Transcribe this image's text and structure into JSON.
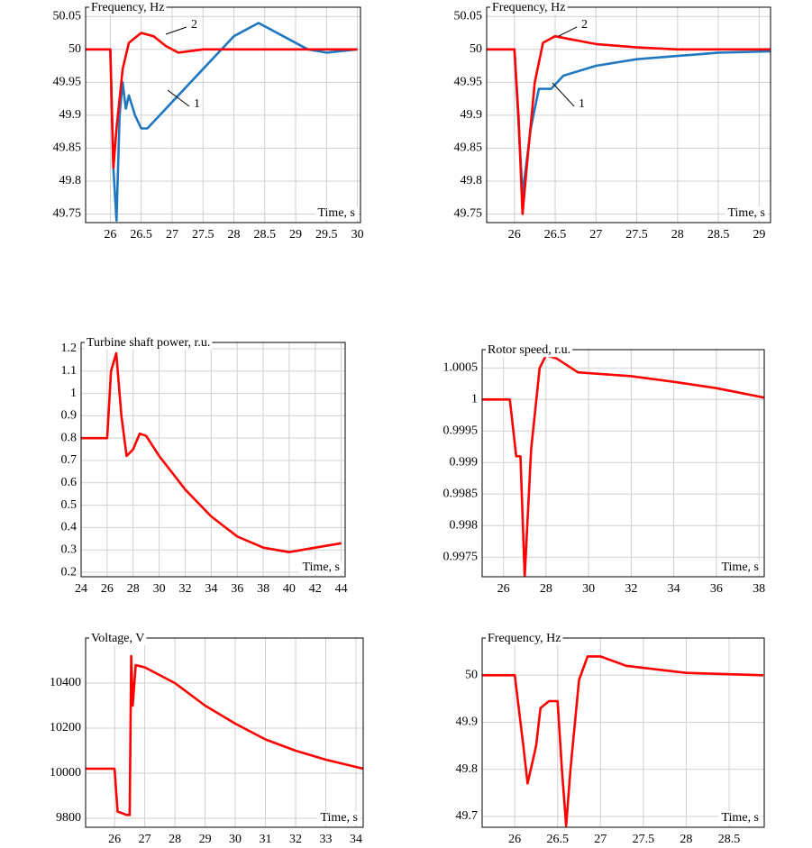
{
  "chart_data": [
    {
      "type": "line",
      "title": "Frequency, Hz",
      "xlabel": "Time, s",
      "grid": true,
      "xlim": [
        25.6,
        30.05
      ],
      "ylim": [
        49.737,
        50.064
      ],
      "xticks": [
        26,
        26.5,
        27,
        27.5,
        28,
        28.5,
        29,
        29.5,
        30
      ],
      "yticks": [
        49.75,
        49.8,
        49.85,
        49.9,
        49.95,
        50,
        50.05
      ],
      "series": [
        {
          "name": "1",
          "color": "#1f78c1",
          "x": [
            25.6,
            26.0,
            26.05,
            26.1,
            26.15,
            26.2,
            26.25,
            26.3,
            26.4,
            26.5,
            26.6,
            27.0,
            27.5,
            28.0,
            28.4,
            28.8,
            29.2,
            29.5,
            30.0
          ],
          "values": [
            50,
            50,
            49.82,
            49.74,
            49.9,
            49.95,
            49.91,
            49.93,
            49.9,
            49.88,
            49.88,
            49.92,
            49.97,
            50.02,
            50.04,
            50.02,
            50.0,
            49.995,
            50.0
          ]
        },
        {
          "name": "2",
          "color": "#ff0000",
          "x": [
            25.6,
            26.0,
            26.05,
            26.1,
            26.2,
            26.3,
            26.5,
            26.7,
            26.9,
            27.1,
            27.5,
            28.0,
            29.0,
            30.0
          ],
          "values": [
            50,
            50,
            49.82,
            49.88,
            49.97,
            50.01,
            50.025,
            50.02,
            50.005,
            49.995,
            50.0,
            50.0,
            50.0,
            50.0
          ]
        }
      ]
    },
    {
      "type": "line",
      "title": "Frequency, Hz",
      "xlabel": "Time, s",
      "grid": true,
      "xlim": [
        25.66,
        29.14
      ],
      "ylim": [
        49.737,
        50.064
      ],
      "xticks": [
        26,
        26.5,
        27,
        27.5,
        28,
        28.5,
        29
      ],
      "yticks": [
        49.75,
        49.8,
        49.85,
        49.9,
        49.95,
        50,
        50.05
      ],
      "series": [
        {
          "name": "1",
          "color": "#1f78c1",
          "x": [
            25.66,
            26.0,
            26.1,
            26.2,
            26.3,
            26.45,
            26.6,
            27.0,
            27.5,
            28.0,
            28.5,
            29.14
          ],
          "values": [
            50,
            50,
            49.78,
            49.88,
            49.94,
            49.94,
            49.96,
            49.975,
            49.985,
            49.99,
            49.995,
            49.997
          ]
        },
        {
          "name": "2",
          "color": "#ff0000",
          "x": [
            25.66,
            26.0,
            26.05,
            26.1,
            26.15,
            26.25,
            26.35,
            26.5,
            26.7,
            27.0,
            27.5,
            28.0,
            29.14
          ],
          "values": [
            50,
            50,
            49.9,
            49.75,
            49.82,
            49.95,
            50.01,
            50.02,
            50.015,
            50.008,
            50.003,
            50.0,
            50.0
          ]
        }
      ]
    },
    {
      "type": "line",
      "title": "Turbine shaft power, r.u.",
      "xlabel": "Time, s",
      "grid": true,
      "xlim": [
        24,
        44.3
      ],
      "ylim": [
        0.18,
        1.228
      ],
      "xticks": [
        24,
        26,
        28,
        30,
        32,
        34,
        36,
        38,
        40,
        42,
        44
      ],
      "yticks": [
        0.2,
        0.3,
        0.4,
        0.5,
        0.6,
        0.7,
        0.8,
        0.9,
        1,
        1.1,
        1.2
      ],
      "series": [
        {
          "color": "#ff0000",
          "x": [
            24,
            26,
            26.3,
            26.7,
            27.1,
            27.5,
            28,
            28.5,
            29,
            30,
            32,
            34,
            36,
            38,
            40,
            42,
            44
          ],
          "values": [
            0.8,
            0.8,
            1.1,
            1.18,
            0.9,
            0.72,
            0.75,
            0.82,
            0.81,
            0.72,
            0.57,
            0.45,
            0.36,
            0.31,
            0.29,
            0.31,
            0.33
          ]
        }
      ]
    },
    {
      "type": "line",
      "title": "Rotor speed, r.u.",
      "xlabel": "Time, s",
      "grid": true,
      "xlim": [
        25.0,
        38.25
      ],
      "ylim": [
        0.99719,
        1.00079
      ],
      "xticks": [
        26,
        28,
        30,
        32,
        34,
        36,
        38
      ],
      "yticks": [
        0.9975,
        0.998,
        0.9985,
        0.999,
        0.9995,
        1,
        1.0005
      ],
      "series": [
        {
          "color": "#ff0000",
          "x": [
            25.0,
            26.3,
            26.6,
            26.8,
            27.0,
            27.3,
            27.7,
            28.0,
            28.5,
            29.5,
            32,
            34,
            36,
            38.25
          ],
          "values": [
            1.0,
            1.0,
            0.9991,
            0.9991,
            0.99719,
            0.9992,
            1.0005,
            1.0007,
            1.00065,
            1.00043,
            1.00037,
            1.00028,
            1.00018,
            1.00003
          ]
        }
      ]
    },
    {
      "type": "line",
      "title": "Voltage, V",
      "xlabel": "Time, s",
      "grid": true,
      "xlim": [
        25.04,
        34.24
      ],
      "ylim": [
        9760,
        10600
      ],
      "xticks": [
        26,
        27,
        28,
        29,
        30,
        31,
        32,
        33,
        34
      ],
      "yticks": [
        9800,
        10000,
        10200,
        10400
      ],
      "series": [
        {
          "color": "#ff0000",
          "x": [
            25.04,
            26.0,
            26.1,
            26.4,
            26.5,
            26.55,
            26.6,
            26.7,
            27,
            28,
            29,
            30,
            31,
            32,
            33,
            34.24
          ],
          "values": [
            10020,
            10020,
            9830,
            9815,
            9815,
            10520,
            10300,
            10480,
            10470,
            10400,
            10300,
            10220,
            10150,
            10100,
            10060,
            10020
          ]
        }
      ]
    },
    {
      "type": "line",
      "title": "Frequency, Hz",
      "xlabel": "Time, s",
      "grid": true,
      "xlim": [
        25.62,
        28.91
      ],
      "ylim": [
        49.677,
        50.079
      ],
      "xticks": [
        26,
        26.5,
        27,
        27.5,
        28,
        28.5
      ],
      "yticks": [
        49.7,
        49.8,
        49.9,
        50
      ],
      "series": [
        {
          "color": "#ff0000",
          "x": [
            25.62,
            26.0,
            26.1,
            26.15,
            26.25,
            26.3,
            26.4,
            26.5,
            26.55,
            26.6,
            26.65,
            26.75,
            26.85,
            27.0,
            27.3,
            28.0,
            28.9
          ],
          "values": [
            50,
            50,
            49.85,
            49.77,
            49.85,
            49.93,
            49.945,
            49.945,
            49.8,
            49.68,
            49.8,
            49.99,
            50.04,
            50.04,
            50.02,
            50.005,
            50.0
          ]
        }
      ]
    }
  ]
}
